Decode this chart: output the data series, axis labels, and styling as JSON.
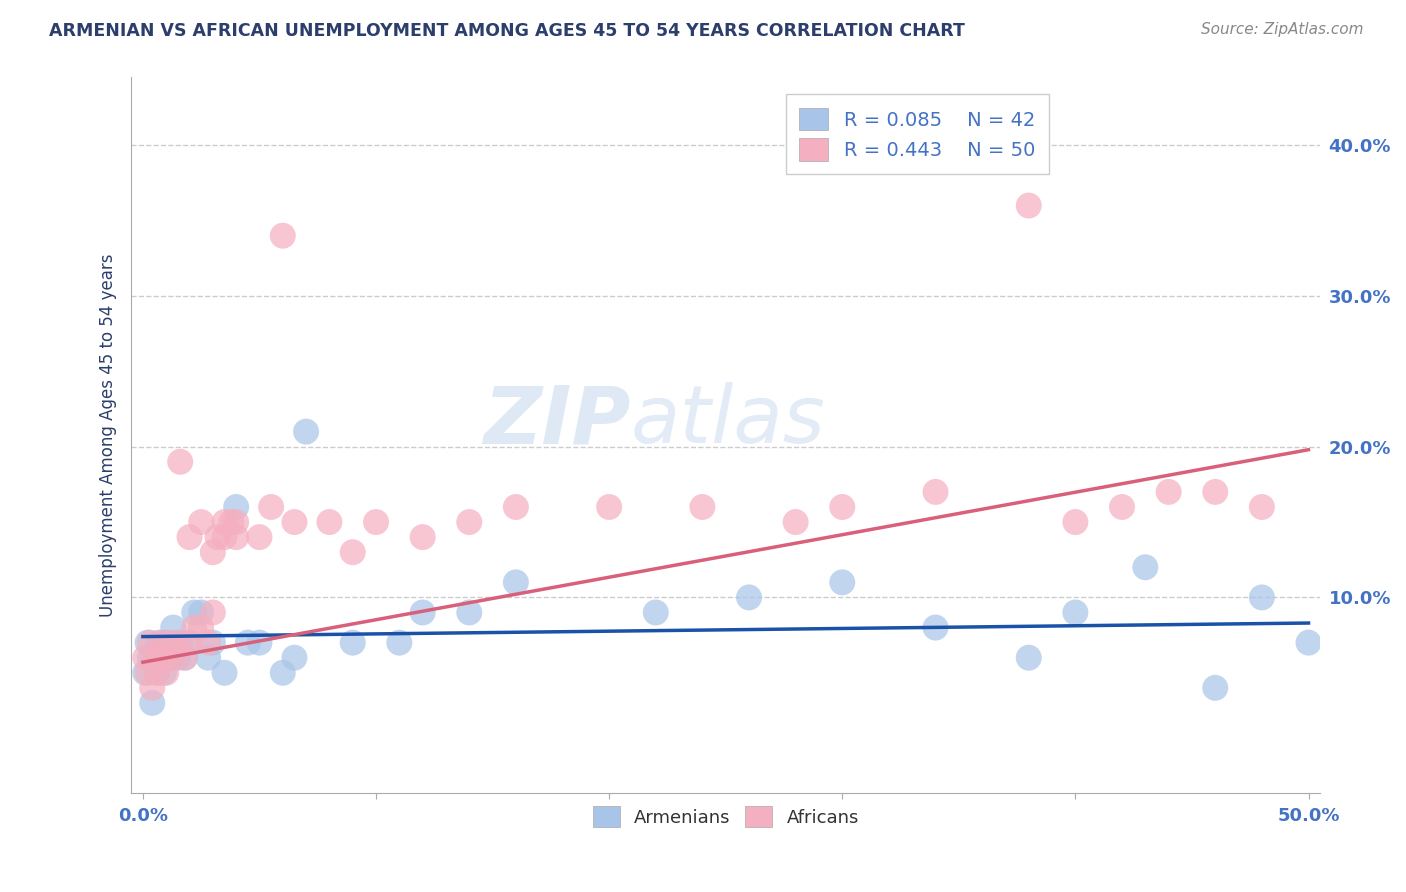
{
  "title": "ARMENIAN VS AFRICAN UNEMPLOYMENT AMONG AGES 45 TO 54 YEARS CORRELATION CHART",
  "source": "Source: ZipAtlas.com",
  "ylabel": "Unemployment Among Ages 45 to 54 years",
  "xlim": [
    -0.005,
    0.505
  ],
  "ylim": [
    -0.03,
    0.445
  ],
  "armenian_color": "#a8c4e8",
  "african_color": "#f4afc0",
  "armenian_line_color": "#1a52a8",
  "african_line_color": "#d9607a",
  "legend_R_armenian": "R = 0.085",
  "legend_N_armenian": "N = 42",
  "legend_R_african": "R = 0.443",
  "legend_N_african": "N = 50",
  "armenian_x": [
    0.001,
    0.002,
    0.003,
    0.004,
    0.005,
    0.006,
    0.007,
    0.008,
    0.009,
    0.01,
    0.012,
    0.013,
    0.015,
    0.016,
    0.018,
    0.02,
    0.022,
    0.025,
    0.028,
    0.03,
    0.035,
    0.04,
    0.045,
    0.05,
    0.06,
    0.065,
    0.07,
    0.09,
    0.11,
    0.12,
    0.14,
    0.16,
    0.22,
    0.26,
    0.3,
    0.34,
    0.38,
    0.4,
    0.43,
    0.46,
    0.48,
    0.5
  ],
  "armenian_y": [
    0.05,
    0.07,
    0.06,
    0.03,
    0.06,
    0.05,
    0.07,
    0.06,
    0.05,
    0.07,
    0.06,
    0.08,
    0.06,
    0.07,
    0.06,
    0.07,
    0.09,
    0.09,
    0.06,
    0.07,
    0.05,
    0.16,
    0.07,
    0.07,
    0.05,
    0.06,
    0.21,
    0.07,
    0.07,
    0.09,
    0.09,
    0.11,
    0.09,
    0.1,
    0.11,
    0.08,
    0.06,
    0.09,
    0.12,
    0.04,
    0.1,
    0.07
  ],
  "african_x": [
    0.001,
    0.002,
    0.003,
    0.004,
    0.005,
    0.006,
    0.007,
    0.008,
    0.009,
    0.01,
    0.012,
    0.013,
    0.015,
    0.016,
    0.018,
    0.02,
    0.022,
    0.025,
    0.028,
    0.03,
    0.032,
    0.035,
    0.038,
    0.04,
    0.05,
    0.055,
    0.06,
    0.065,
    0.08,
    0.09,
    0.1,
    0.12,
    0.14,
    0.16,
    0.2,
    0.24,
    0.28,
    0.3,
    0.34,
    0.38,
    0.4,
    0.42,
    0.44,
    0.46,
    0.48,
    0.02,
    0.025,
    0.03,
    0.035,
    0.04
  ],
  "african_y": [
    0.06,
    0.05,
    0.07,
    0.04,
    0.06,
    0.05,
    0.06,
    0.07,
    0.06,
    0.05,
    0.07,
    0.06,
    0.07,
    0.19,
    0.06,
    0.07,
    0.08,
    0.08,
    0.07,
    0.09,
    0.14,
    0.15,
    0.15,
    0.14,
    0.14,
    0.16,
    0.34,
    0.15,
    0.15,
    0.13,
    0.15,
    0.14,
    0.15,
    0.16,
    0.16,
    0.16,
    0.15,
    0.16,
    0.17,
    0.36,
    0.15,
    0.16,
    0.17,
    0.17,
    0.16,
    0.14,
    0.15,
    0.13,
    0.14,
    0.15
  ],
  "arm_line_x0": 0.0,
  "arm_line_x1": 0.5,
  "arm_line_y0": 0.074,
  "arm_line_y1": 0.083,
  "afr_line_x0": 0.0,
  "afr_line_x1": 0.5,
  "afr_line_y0": 0.057,
  "afr_line_y1": 0.198,
  "watermark_zip": "ZIP",
  "watermark_atlas": "atlas",
  "background_color": "#ffffff",
  "grid_color": "#cccccc",
  "title_color": "#2c3e6b",
  "axis_label_color": "#2c3e6b",
  "tick_color": "#4472c4",
  "source_color": "#888888"
}
